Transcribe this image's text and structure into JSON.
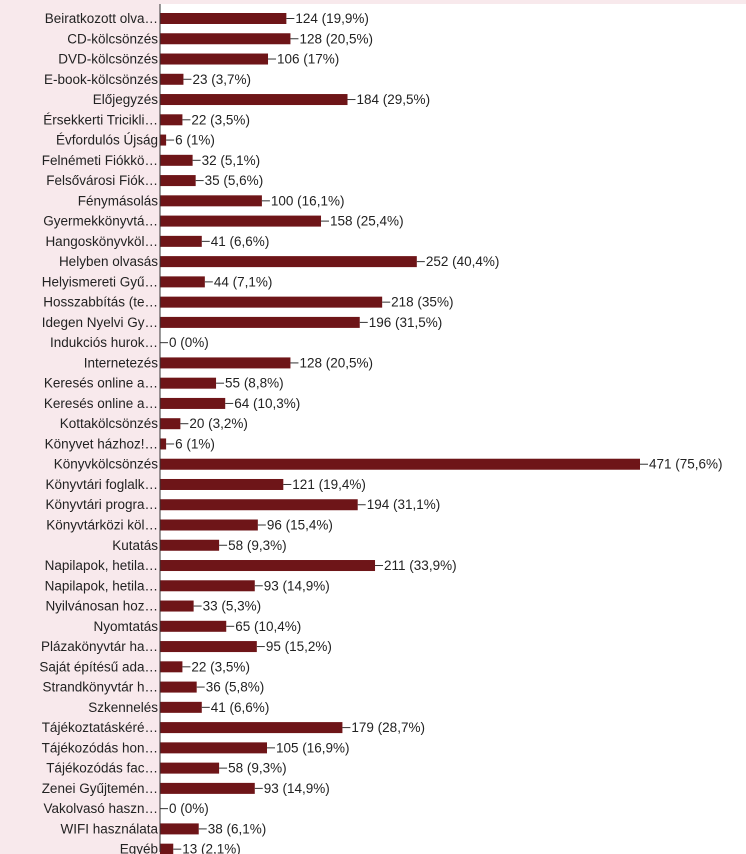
{
  "chart_data": {
    "type": "bar",
    "orientation": "horizontal",
    "title": "",
    "xlabel": "",
    "ylabel": "",
    "grid": false,
    "legend": "none",
    "colors": {
      "bar": "#6e1518",
      "background": "#f8e9ec",
      "plot_background": "#ffffff",
      "text": "#222222",
      "axis": "#333333"
    },
    "xlim": [
      0,
      471
    ],
    "categories": [
      "Beiratkozott olva…",
      "CD-kölcsönzés",
      "DVD-kölcsönzés",
      "E-book-kölcsönzés",
      "Előjegyzés",
      "Érsekkerti Tricikli…",
      "Évfordulós Újság",
      "Felnémeti Fiókkö…",
      "Felsővárosi Fiók…",
      "Fénymásolás",
      "Gyermekkönyvtá…",
      "Hangoskönyvköl…",
      "Helyben olvasás",
      "Helyismereti Gyű…",
      "Hosszabbítás (te…",
      "Idegen Nyelvi Gy…",
      "Indukciós hurok…",
      "Internetezés",
      "Keresés online a…",
      "Keresés online a…",
      "Kottakölcsönzés",
      "Könyvet házhoz!…",
      "Könyvkölcsönzés",
      "Könyvtári foglalk…",
      "Könyvtári progra…",
      "Könyvtárközi köl…",
      "Kutatás",
      "Napilapok, hetila…",
      "Napilapok, hetila…",
      "Nyilvánosan hoz…",
      "Nyomtatás",
      "Plázakönyvtár ha…",
      "Saját építésű ada…",
      "Strandkönyvtár h…",
      "Szkennelés",
      "Tájékoztatáskéré…",
      "Tájékozódás hon…",
      "Tájékozódás fac…",
      "Zenei Gyűjtemén…",
      "Vakolvasó haszn…",
      "WIFI használata",
      "Egyéb"
    ],
    "values": [
      124,
      128,
      106,
      23,
      184,
      22,
      6,
      32,
      35,
      100,
      158,
      41,
      252,
      44,
      218,
      196,
      0,
      128,
      55,
      64,
      20,
      6,
      471,
      121,
      194,
      96,
      58,
      211,
      93,
      33,
      65,
      95,
      22,
      36,
      41,
      179,
      105,
      58,
      93,
      0,
      38,
      13
    ],
    "value_labels": [
      "124 (19,9%)",
      "128 (20,5%)",
      "106 (17%)",
      "23 (3,7%)",
      "184 (29,5%)",
      "22 (3,5%)",
      "6 (1%)",
      "32 (5,1%)",
      "35 (5,6%)",
      "100 (16,1%)",
      "158 (25,4%)",
      "41 (6,6%)",
      "252 (40,4%)",
      "44 (7,1%)",
      "218 (35%)",
      "196 (31,5%)",
      "0 (0%)",
      "128 (20,5%)",
      "55 (8,8%)",
      "64 (10,3%)",
      "20 (3,2%)",
      "6 (1%)",
      "471 (75,6%)",
      "121 (19,4%)",
      "194 (31,1%)",
      "96 (15,4%)",
      "58 (9,3%)",
      "211 (33,9%)",
      "93 (14,9%)",
      "33 (5,3%)",
      "65 (10,4%)",
      "95 (15,2%)",
      "22 (3,5%)",
      "36 (5,8%)",
      "41 (6,6%)",
      "179 (28,7%)",
      "105 (16,9%)",
      "58 (9,3%)",
      "93 (14,9%)",
      "0 (0%)",
      "38 (6,1%)",
      "13 (2,1%)"
    ]
  }
}
